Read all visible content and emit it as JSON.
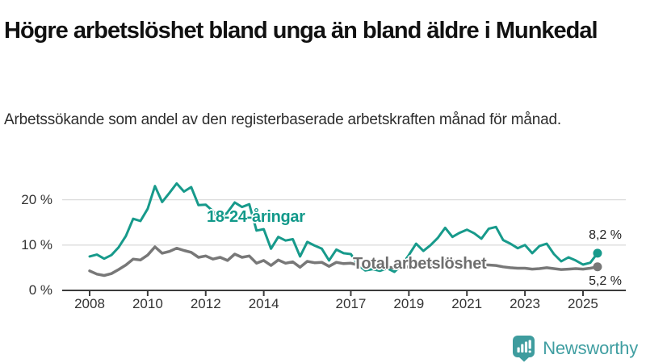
{
  "header": {
    "title": "Högre arbetslöshet bland unga än bland äldre i Munkedal",
    "subtitle": "Arbetssökande som andel av den registerbaserade arbetskraften månad för månad."
  },
  "colors": {
    "young_line": "#179a8b",
    "total_line": "#787878",
    "gridline": "#dcdcdc",
    "axis": "#3c3c3c",
    "brand_teal": "#3e9c9e"
  },
  "chart_data": {
    "type": "line",
    "title": "Högre arbetslöshet bland unga än bland äldre i Munkedal",
    "xlabel": "",
    "ylabel": "",
    "xlim": [
      2007.8,
      2026.2
    ],
    "ylim": [
      0,
      25
    ],
    "grid": "horizontal",
    "x_ticks": [
      {
        "value": 2008,
        "label": "2008"
      },
      {
        "value": 2010,
        "label": "2010"
      },
      {
        "value": 2012,
        "label": "2012"
      },
      {
        "value": 2014,
        "label": "2014"
      },
      {
        "value": 2017,
        "label": "2017"
      },
      {
        "value": 2019,
        "label": "2019"
      },
      {
        "value": 2021,
        "label": "2021"
      },
      {
        "value": 2023,
        "label": "2023"
      },
      {
        "value": 2025,
        "label": "2025"
      }
    ],
    "y_ticks": [
      {
        "value": 0,
        "label": "0 %"
      },
      {
        "value": 10,
        "label": "10 %"
      },
      {
        "value": 20,
        "label": "20 %"
      }
    ],
    "x": [
      2008.0,
      2008.25,
      2008.5,
      2008.75,
      2009.0,
      2009.25,
      2009.5,
      2009.75,
      2010.0,
      2010.25,
      2010.5,
      2010.75,
      2011.0,
      2011.25,
      2011.5,
      2011.75,
      2012.0,
      2012.25,
      2012.5,
      2012.75,
      2013.0,
      2013.25,
      2013.5,
      2013.75,
      2014.0,
      2014.25,
      2014.5,
      2014.75,
      2015.0,
      2015.25,
      2015.5,
      2015.75,
      2016.0,
      2016.25,
      2016.5,
      2016.75,
      2017.0,
      2017.25,
      2017.5,
      2017.75,
      2018.0,
      2018.25,
      2018.5,
      2018.75,
      2019.0,
      2019.25,
      2019.5,
      2019.75,
      2020.0,
      2020.25,
      2020.5,
      2020.75,
      2021.0,
      2021.25,
      2021.5,
      2021.75,
      2022.0,
      2022.25,
      2022.5,
      2022.75,
      2023.0,
      2023.25,
      2023.5,
      2023.75,
      2024.0,
      2024.25,
      2024.5,
      2024.75,
      2025.0,
      2025.25,
      2025.5
    ],
    "series": [
      {
        "name": "18-24-åringar",
        "color": "#179a8b",
        "stroke_width": 3,
        "end_label": "8,2 %",
        "end_value": 8.2,
        "values": [
          7.5,
          7.9,
          7.0,
          7.8,
          9.5,
          12.0,
          15.8,
          15.3,
          18.0,
          23.0,
          19.5,
          21.5,
          23.6,
          21.8,
          22.8,
          18.8,
          18.9,
          17.5,
          15.6,
          17.2,
          19.4,
          18.4,
          19.0,
          13.2,
          13.5,
          9.2,
          11.8,
          11.0,
          11.3,
          7.5,
          10.7,
          9.9,
          9.2,
          6.6,
          9.0,
          8.2,
          8.0,
          5.6,
          4.4,
          4.7,
          4.3,
          4.9,
          4.1,
          5.6,
          7.8,
          10.3,
          8.7,
          10.0,
          11.6,
          13.8,
          11.8,
          12.7,
          13.4,
          12.6,
          11.4,
          13.6,
          14.0,
          11.1,
          10.3,
          9.3,
          10.0,
          8.2,
          9.8,
          10.3,
          8.0,
          6.4,
          7.3,
          6.6,
          5.7,
          6.1,
          8.2
        ]
      },
      {
        "name": "Total arbetslöshet",
        "color": "#787878",
        "stroke_width": 3.5,
        "end_label": "5,2 %",
        "end_value": 5.2,
        "values": [
          4.3,
          3.6,
          3.3,
          3.7,
          4.6,
          5.6,
          6.9,
          6.7,
          7.8,
          9.6,
          8.2,
          8.6,
          9.3,
          8.8,
          8.4,
          7.3,
          7.6,
          6.9,
          7.3,
          6.6,
          8.0,
          7.3,
          7.6,
          6.0,
          6.6,
          5.5,
          6.7,
          6.0,
          6.3,
          5.1,
          6.4,
          6.1,
          6.2,
          5.3,
          6.2,
          5.9,
          6.0,
          5.6,
          5.3,
          5.4,
          5.2,
          5.1,
          5.0,
          5.1,
          5.2,
          5.3,
          5.2,
          5.5,
          6.0,
          6.7,
          6.4,
          6.3,
          6.2,
          5.9,
          5.6,
          5.6,
          5.5,
          5.2,
          5.0,
          4.9,
          4.9,
          4.7,
          4.8,
          5.0,
          4.8,
          4.6,
          4.7,
          4.8,
          4.7,
          4.9,
          5.2
        ]
      }
    ]
  },
  "branding": {
    "logo_text": "Newsworthy"
  }
}
